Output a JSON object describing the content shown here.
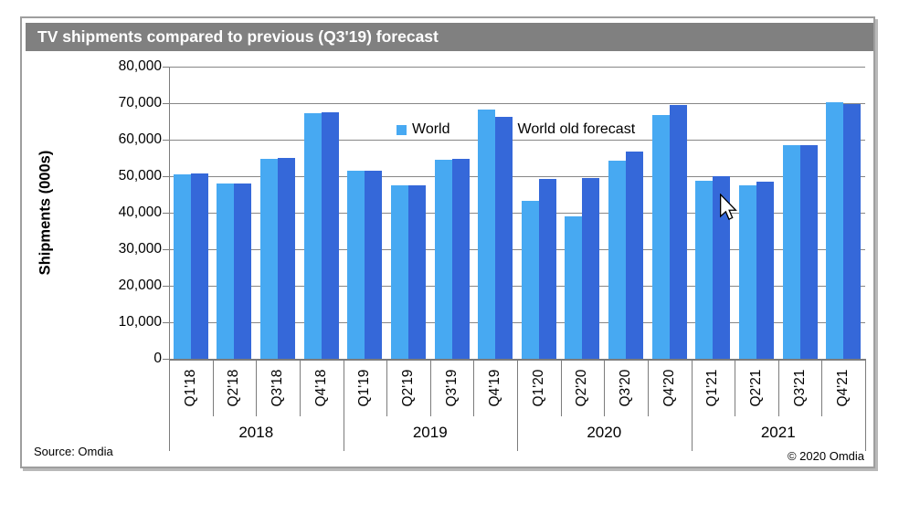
{
  "title": "TV shipments compared to previous (Q3'19) forecast",
  "y_axis": {
    "label": "Shipments (000s)",
    "ticks": [
      "80,000",
      "70,000",
      "60,000",
      "50,000",
      "40,000",
      "30,000",
      "20,000",
      "10,000",
      "0"
    ]
  },
  "legend": [
    {
      "label": "World",
      "color": "#47a9f2"
    },
    {
      "label": "World old forecast",
      "color": "#3568d9"
    }
  ],
  "source": "Source: Omdia",
  "copyright": "© 2020 Omdia",
  "icons": {
    "cursor": "mouse-arrow-pointer"
  },
  "chart_data": {
    "type": "bar",
    "title": "TV shipments compared to previous (Q3'19) forecast",
    "xlabel": "",
    "ylabel": "Shipments (000s)",
    "ylim": [
      0,
      80000
    ],
    "grid": true,
    "legend_position": "top-inside",
    "categories": [
      "Q1'18",
      "Q2'18",
      "Q3'18",
      "Q4'18",
      "Q1'19",
      "Q2'19",
      "Q3'19",
      "Q4'19",
      "Q1'20",
      "Q2'20",
      "Q3'20",
      "Q4'20",
      "Q1'21",
      "Q2'21",
      "Q3'21",
      "Q4'21"
    ],
    "year_groups": [
      "2018",
      "2019",
      "2020",
      "2021"
    ],
    "series": [
      {
        "name": "World",
        "color": "#47a9f2",
        "values": [
          50600,
          48000,
          54800,
          67300,
          51500,
          47500,
          54600,
          68300,
          43300,
          39000,
          54200,
          66800,
          48800,
          47500,
          58500,
          70200
        ]
      },
      {
        "name": "World old forecast",
        "color": "#3568d9",
        "values": [
          50800,
          48100,
          54900,
          67400,
          51600,
          47600,
          54700,
          66200,
          49300,
          49400,
          56700,
          69400,
          50000,
          48500,
          58600,
          69800
        ]
      }
    ]
  }
}
